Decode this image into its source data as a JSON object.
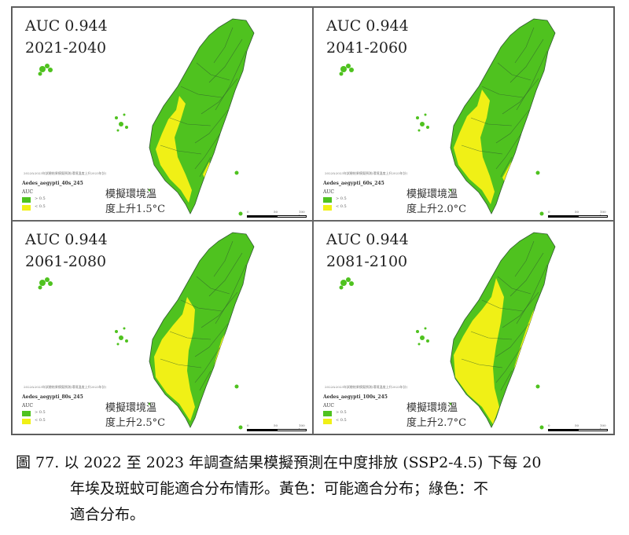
{
  "colors": {
    "suitable": "#f0f016",
    "unsuitable": "#4fc21f",
    "boundary": "#2f5a2f"
  },
  "legend": {
    "title": "AUC",
    "items": [
      "> 0.5",
      "< 0.5"
    ]
  },
  "panels": [
    {
      "auc": "AUC 0.944",
      "period": "2021-2040",
      "species": "Aedes_aegypti_40s_245",
      "credit": "2022&2023年試驗結果模擬預測(環境溫度上升2023年計)",
      "ann1": "模擬環境溫",
      "ann2": "度上升1.5°C",
      "scale": [
        "0",
        "50",
        "100 km"
      ]
    },
    {
      "auc": "AUC 0.944",
      "period": "2041-2060",
      "species": "Aedes_aegypti_60s_245",
      "credit": "2022&2023年試驗結果模擬預測(環境溫度上升2023年計)",
      "ann1": "模擬環境溫",
      "ann2": "度上升2.0°C",
      "scale": [
        "0",
        "50",
        "100 km"
      ]
    },
    {
      "auc": "AUC 0.944",
      "period": "2061-2080",
      "species": "Aedes_aegypti_80s_245",
      "credit": "2022&2023年試驗結果模擬預測(環境溫度上升2023年計)",
      "ann1": "模擬環境溫",
      "ann2": "度上升2.5°C",
      "scale": [
        "0",
        "50",
        "100 km"
      ]
    },
    {
      "auc": "AUC 0.944",
      "period": "2081-2100",
      "species": "Aedes_aegypti_100s_245",
      "credit": "2022&2023年試驗結果模擬預測(環境溫度上升2023年計)",
      "ann1": "模擬環境溫",
      "ann2": "度上升2.7°C",
      "scale": [
        "0",
        "50",
        "100 km"
      ]
    }
  ],
  "caption": {
    "line1": "圖 77. 以 2022 至 2023 年調查結果模擬預測在中度排放 (SSP2-4.5) 下每 20",
    "line2": "年埃及斑蚊可能適合分布情形。黃色：可能適合分布；綠色：不",
    "line3": "適合分布。"
  }
}
